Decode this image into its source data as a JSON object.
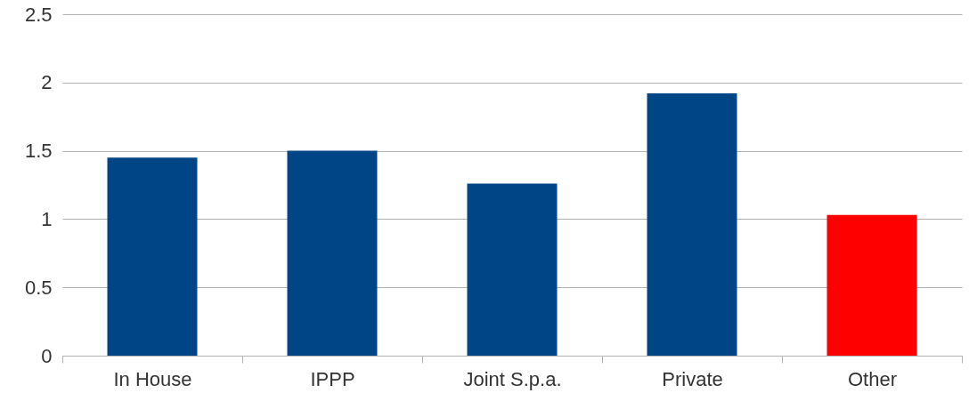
{
  "chart_data": {
    "type": "bar",
    "categories": [
      "In House",
      "IPPP",
      "Joint S.p.a.",
      "Private",
      "Other"
    ],
    "values": [
      1.45,
      1.5,
      1.26,
      1.92,
      1.03
    ],
    "colors": [
      "#004586",
      "#004586",
      "#004586",
      "#004586",
      "#ff0000"
    ],
    "ylim": [
      0,
      2.5
    ],
    "yticks": [
      0,
      0.5,
      1,
      1.5,
      2,
      2.5
    ],
    "grid": "y"
  }
}
